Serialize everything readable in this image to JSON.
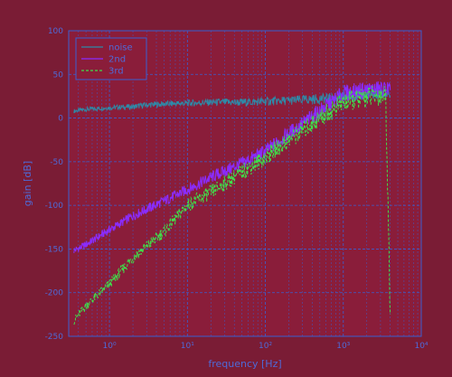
{
  "chart_data": {
    "type": "line",
    "title": "",
    "xlabel": "frequency [Hz]",
    "ylabel": "gain [dB]",
    "xscale": "log",
    "xlim": [
      0.3,
      10000
    ],
    "ylim": [
      -250,
      100
    ],
    "grid": true,
    "legend_position": "top-left",
    "xticks": [
      {
        "value": 1,
        "label": "10⁰"
      },
      {
        "value": 10,
        "label": "10¹"
      },
      {
        "value": 100,
        "label": "10²"
      },
      {
        "value": 1000,
        "label": "10³"
      },
      {
        "value": 10000,
        "label": "10⁴"
      }
    ],
    "yticks": [
      100,
      50,
      0,
      -50,
      -100,
      -150,
      -200,
      -250
    ],
    "colors": {
      "background": "#7a1c35",
      "axes_face": "#8a1d3a",
      "grid": "#3a5fd0",
      "tick_text": "#4e6ad8"
    },
    "series": [
      {
        "name": "noise",
        "color": "#2e8aa8",
        "style": "solid",
        "x": [
          0.35,
          0.5,
          1,
          2,
          3,
          5,
          10,
          20,
          50,
          100,
          200,
          500,
          1000,
          2000,
          3000,
          3500,
          4000
        ],
        "y": [
          8,
          10,
          12,
          13,
          15,
          16,
          17,
          18,
          18,
          19,
          20,
          22,
          24,
          26,
          27,
          27,
          26
        ]
      },
      {
        "name": "2nd",
        "color": "#8a2cff",
        "style": "solid",
        "x": [
          0.35,
          0.5,
          1,
          2,
          5,
          10,
          20,
          50,
          100,
          200,
          500,
          1000,
          2000,
          3000,
          3500,
          4000
        ],
        "y": [
          -152,
          -145,
          -128,
          -112,
          -95,
          -82,
          -68,
          -52,
          -38,
          -18,
          8,
          28,
          32,
          33,
          33,
          32
        ]
      },
      {
        "name": "3rd",
        "color": "#3fe04a",
        "style": "dashed",
        "x": [
          0.35,
          0.5,
          1,
          2,
          5,
          10,
          20,
          50,
          100,
          200,
          500,
          1000,
          2000,
          3000,
          3500,
          4000
        ],
        "y": [
          -232,
          -215,
          -190,
          -160,
          -130,
          -100,
          -85,
          -62,
          -45,
          -25,
          0,
          18,
          24,
          26,
          26,
          -225
        ]
      }
    ]
  }
}
